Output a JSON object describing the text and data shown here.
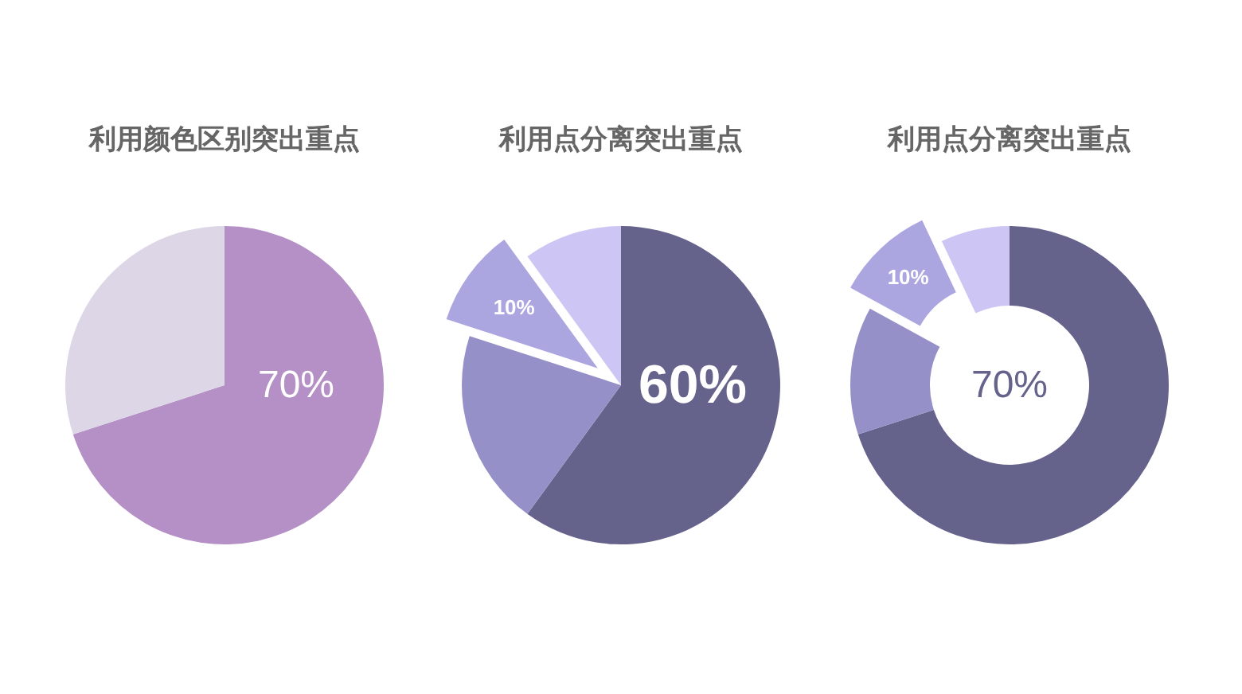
{
  "chart_data": [
    {
      "type": "pie",
      "title": "利用颜色区别突出重点",
      "categories": [
        null,
        null
      ],
      "values": [
        70,
        30
      ],
      "colors": [
        "#b490c6",
        "#ddd6e6"
      ],
      "value_labels": [
        "70%",
        null
      ]
    },
    {
      "type": "pie",
      "title": "利用点分离突出重点",
      "categories": [
        null,
        null,
        null,
        null
      ],
      "values": [
        60,
        20,
        10,
        10
      ],
      "colors": [
        "#65628c",
        "#9591c8",
        "#aba5e0",
        "#cdc6f5"
      ],
      "value_labels": [
        "60%",
        null,
        "10%",
        null
      ]
    },
    {
      "type": "donut",
      "title": "利用点分离突出重点",
      "categories": [
        null,
        null,
        null,
        null
      ],
      "values": [
        70,
        13,
        10,
        7
      ],
      "colors": [
        "#65628c",
        "#9591c8",
        "#aba5e0",
        "#cdc6f5"
      ],
      "value_labels": [
        null,
        null,
        "10%",
        null
      ],
      "annotations": [
        "70%"
      ]
    }
  ]
}
